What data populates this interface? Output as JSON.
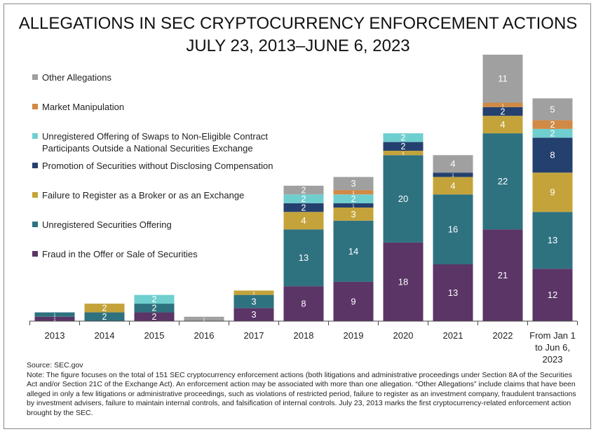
{
  "chart_data": {
    "type": "stacked_bar",
    "title": "ALLEGATIONS IN SEC CRYPTOCURRENCY ENFORCEMENT ACTIONS",
    "subtitle": "JULY 23, 2013–JUNE 6, 2023",
    "categories": [
      "2013",
      "2014",
      "2015",
      "2016",
      "2017",
      "2018",
      "2019",
      "2020",
      "2021",
      "2022",
      "From Jan 1 to Jun 6, 2023"
    ],
    "series": [
      {
        "name": "Fraud in the Offer or Sale of Securities",
        "color": "#5a3566",
        "values": [
          1,
          null,
          2,
          null,
          3,
          8,
          9,
          18,
          13,
          21,
          12
        ]
      },
      {
        "name": "Unregistered Securities Offering",
        "color": "#2e7280",
        "values": [
          1,
          2,
          2,
          null,
          3,
          13,
          14,
          20,
          16,
          22,
          13
        ]
      },
      {
        "name": "Failure to Register as a Broker or as an Exchange",
        "color": "#c4a43a",
        "values": [
          null,
          2,
          null,
          null,
          1,
          4,
          3,
          1,
          4,
          4,
          9
        ]
      },
      {
        "name": "Promotion of Securities without Disclosing Compensation",
        "color": "#24406e",
        "values": [
          null,
          null,
          null,
          null,
          null,
          2,
          1,
          2,
          1,
          2,
          8
        ]
      },
      {
        "name": "Unregistered Offering of Swaps to Non-Eligible Contract Participants Outside a National Securities Exchange",
        "color": "#6fcfcf",
        "values": [
          null,
          null,
          2,
          null,
          null,
          2,
          2,
          2,
          null,
          null,
          2
        ]
      },
      {
        "name": "Market Manipulation",
        "color": "#d08a45",
        "values": [
          null,
          null,
          null,
          null,
          null,
          null,
          1,
          null,
          null,
          1,
          2
        ]
      },
      {
        "name": "Other Allegations",
        "color": "#a0a0a0",
        "values": [
          null,
          null,
          null,
          1,
          null,
          2,
          3,
          null,
          4,
          11,
          5
        ]
      }
    ],
    "source": "Source: SEC.gov",
    "note": "Note: The figure focuses on the total of 151 SEC cryptocurrency enforcement actions (both litigations and administrative proceedings under Section 8A of the Securities Act and/or Section 21C of the Exchange Act). An enforcement action may be associated with more than one allegation. “Other Allegations” include claims that have been alleged in only a few litigations or administrative proceedings, such as violations of restricted period, failure to register as an investment company, fraudulent transactions by investment advisers, failure to maintain internal controls, and falsification of internal controls. July 23, 2013 marks the first cryptocurrency-related enforcement action brought by the SEC."
  }
}
